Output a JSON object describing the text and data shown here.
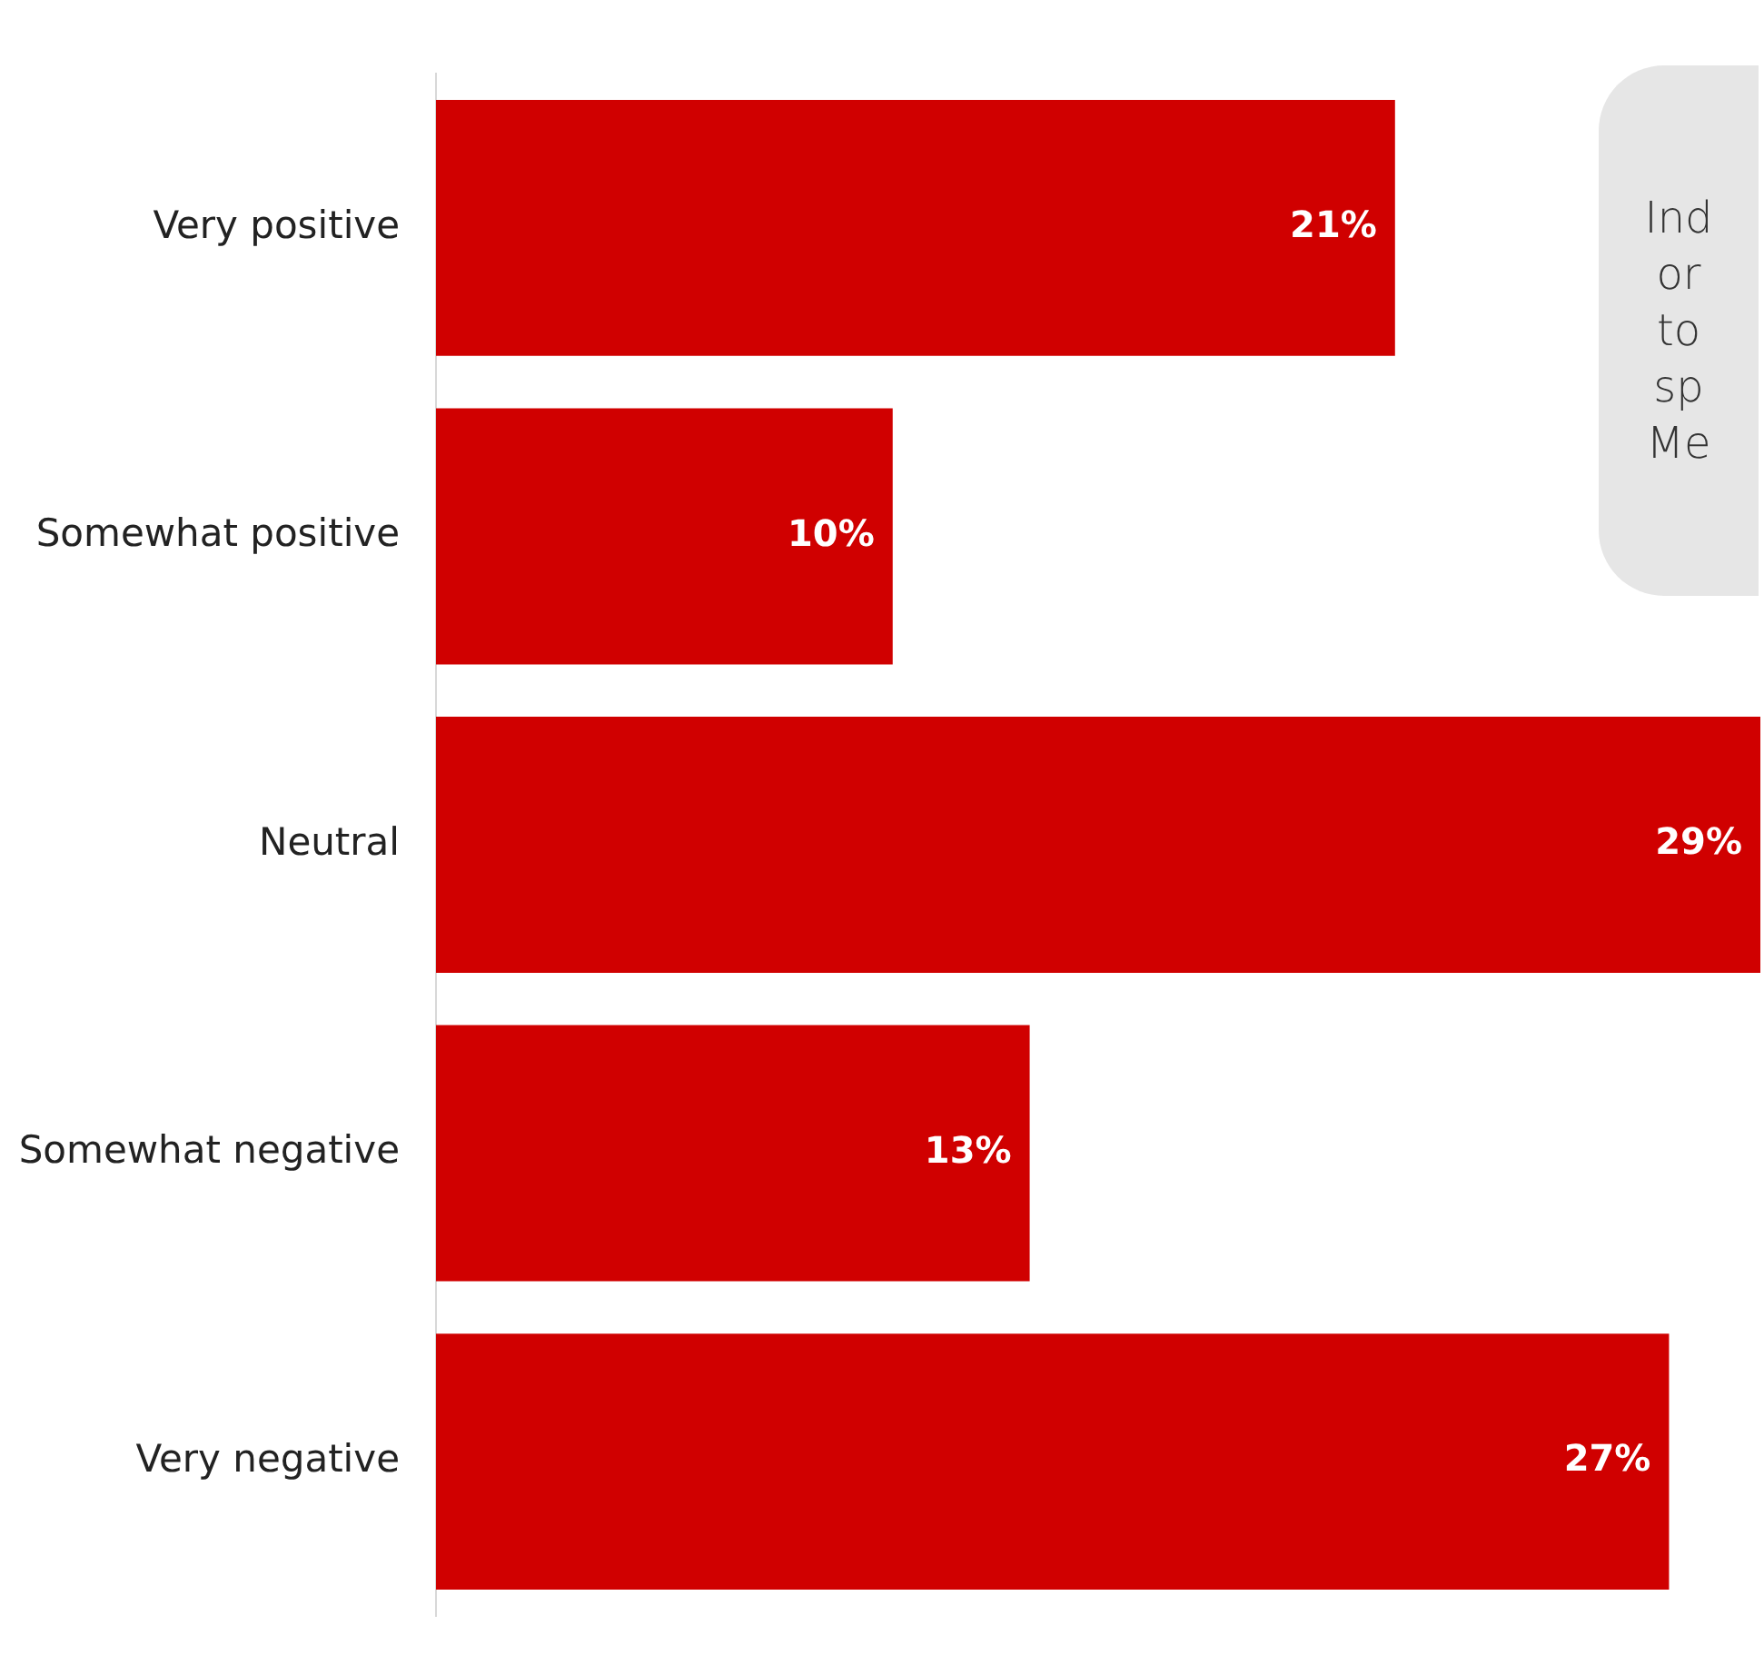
{
  "chart_data": {
    "type": "bar",
    "orientation": "horizontal",
    "tick_labels": "y",
    "categories": [
      "Very positive",
      "Somewhat positive",
      "Neutral",
      "Somewhat negative",
      "Very negative"
    ],
    "values": [
      21,
      10,
      29,
      13,
      27
    ],
    "value_labels": [
      "21%",
      "10%",
      "29%",
      "13%",
      "27%"
    ],
    "color": "#d00000",
    "annotations": [
      "Ind\nor\nto\nsp\nMe"
    ]
  }
}
